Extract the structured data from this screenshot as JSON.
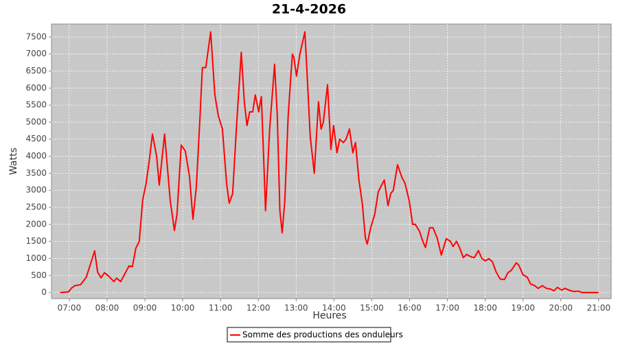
{
  "chart_data": {
    "type": "line",
    "title": "21-4-2026",
    "x_label": "Heures",
    "y_label": "Watts",
    "x": [
      6.76,
      6.98,
      7.05,
      7.15,
      7.3,
      7.45,
      7.58,
      7.67,
      7.75,
      7.84,
      7.93,
      8.04,
      8.18,
      8.25,
      8.36,
      8.47,
      8.58,
      8.67,
      8.76,
      8.85,
      8.94,
      9.03,
      9.12,
      9.2,
      9.31,
      9.38,
      9.52,
      9.67,
      9.78,
      9.85,
      9.96,
      10.07,
      10.18,
      10.27,
      10.36,
      10.45,
      10.52,
      10.61,
      10.74,
      10.85,
      10.94,
      11.05,
      11.16,
      11.23,
      11.32,
      11.43,
      11.55,
      11.63,
      11.7,
      11.77,
      11.85,
      11.92,
      12.01,
      12.08,
      12.14,
      12.19,
      12.3,
      12.43,
      12.5,
      12.57,
      12.63,
      12.7,
      12.79,
      12.9,
      12.94,
      13.01,
      13.1,
      13.23,
      13.3,
      13.37,
      13.48,
      13.59,
      13.66,
      13.72,
      13.83,
      13.92,
      13.99,
      14.08,
      14.15,
      14.25,
      14.32,
      14.41,
      14.5,
      14.57,
      14.66,
      14.75,
      14.83,
      14.88,
      14.97,
      15.08,
      15.17,
      15.26,
      15.33,
      15.43,
      15.5,
      15.57,
      15.68,
      15.79,
      15.88,
      15.99,
      16.08,
      16.15,
      16.26,
      16.35,
      16.42,
      16.53,
      16.62,
      16.73,
      16.84,
      16.97,
      17.08,
      17.15,
      17.24,
      17.33,
      17.42,
      17.51,
      17.62,
      17.71,
      17.82,
      17.91,
      18.0,
      18.1,
      18.19,
      18.29,
      18.39,
      18.51,
      18.6,
      18.69,
      18.82,
      18.89,
      19.0,
      19.11,
      19.2,
      19.31,
      19.4,
      19.51,
      19.62,
      19.73,
      19.82,
      19.91,
      20.02,
      20.11,
      20.24,
      20.34,
      20.46,
      20.56,
      21.0
    ],
    "series": [
      {
        "name": "Somme des productions des onduleurs",
        "color": "#ff0000",
        "values": [
          0,
          20,
          120,
          200,
          230,
          450,
          900,
          1220,
          600,
          430,
          580,
          480,
          320,
          420,
          320,
          550,
          780,
          760,
          1300,
          1500,
          2700,
          3200,
          3900,
          4650,
          4000,
          3150,
          4650,
          2700,
          1820,
          2300,
          4330,
          4150,
          3400,
          2150,
          3100,
          5000,
          6600,
          6600,
          7650,
          5800,
          5200,
          4800,
          3200,
          2620,
          2900,
          5000,
          7050,
          5600,
          4900,
          5300,
          5300,
          5800,
          5300,
          5750,
          4000,
          2400,
          4800,
          6700,
          5200,
          2400,
          1750,
          2700,
          5200,
          7000,
          6900,
          6350,
          7000,
          7650,
          6200,
          4600,
          3500,
          5600,
          4800,
          5000,
          6100,
          4200,
          4900,
          4100,
          4500,
          4400,
          4500,
          4800,
          4100,
          4400,
          3300,
          2600,
          1600,
          1420,
          1900,
          2300,
          2950,
          3150,
          3300,
          2550,
          2900,
          3000,
          3750,
          3400,
          3200,
          2700,
          2000,
          2000,
          1800,
          1500,
          1320,
          1900,
          1900,
          1600,
          1100,
          1580,
          1500,
          1350,
          1500,
          1300,
          1020,
          1120,
          1050,
          1020,
          1230,
          1000,
          930,
          990,
          900,
          600,
          400,
          380,
          580,
          650,
          870,
          800,
          520,
          450,
          250,
          200,
          120,
          200,
          120,
          100,
          50,
          150,
          70,
          120,
          60,
          30,
          40,
          0,
          0
        ]
      }
    ],
    "xlim": [
      6.53,
      21.33
    ],
    "ylim": [
      -180,
      7880
    ],
    "xticks": [
      {
        "value": 7,
        "label": "07:00"
      },
      {
        "value": 8,
        "label": "08:00"
      },
      {
        "value": 9,
        "label": "09:00"
      },
      {
        "value": 10,
        "label": "10:00"
      },
      {
        "value": 11,
        "label": "11:00"
      },
      {
        "value": 12,
        "label": "12:00"
      },
      {
        "value": 13,
        "label": "13:00"
      },
      {
        "value": 14,
        "label": "14:00"
      },
      {
        "value": 15,
        "label": "15:00"
      },
      {
        "value": 16,
        "label": "16:00"
      },
      {
        "value": 17,
        "label": "17:00"
      },
      {
        "value": 18,
        "label": "18:00"
      },
      {
        "value": 19,
        "label": "19:00"
      },
      {
        "value": 20,
        "label": "20:00"
      },
      {
        "value": 21,
        "label": "21:00"
      }
    ],
    "yticks": [
      0,
      500,
      1000,
      1500,
      2000,
      2500,
      3000,
      3500,
      4000,
      4500,
      5000,
      5500,
      6000,
      6500,
      7000,
      7500
    ],
    "grid": true
  }
}
